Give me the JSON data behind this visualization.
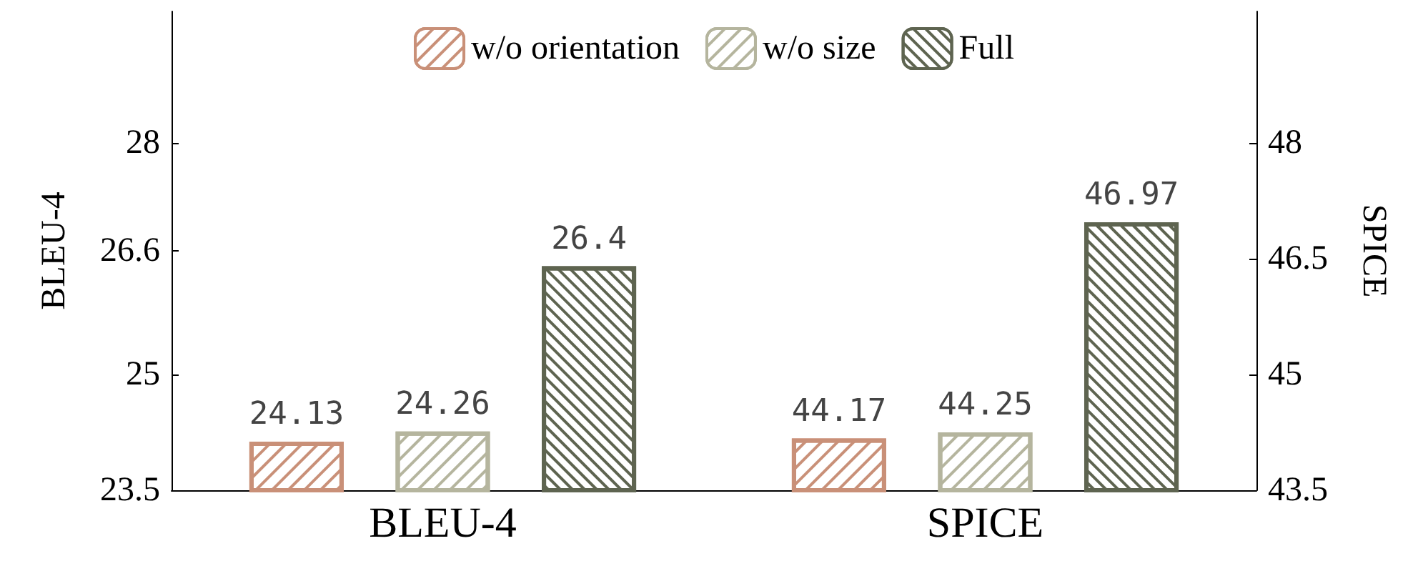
{
  "chart_data": {
    "type": "bar",
    "categories": [
      "BLEU-4",
      "SPICE"
    ],
    "ylabel": "BLEU-4",
    "y2label": "SPICE",
    "series": [
      {
        "name": "w/o orientation",
        "color": "#c99078",
        "values": [
          24.13,
          null
        ]
      },
      {
        "name": "w/o size",
        "color": "#b5b59e",
        "values": [
          24.26,
          null
        ]
      },
      {
        "name": "Full",
        "color": "#5e6450",
        "values": [
          26.4,
          null
        ]
      },
      {
        "color": "#c99078",
        "values": [
          null,
          44.17
        ],
        "axis": "y2"
      },
      {
        "color": "#b5b59e",
        "values": [
          null,
          44.25
        ],
        "axis": "y2"
      },
      {
        "color": "#5e6450",
        "values": [
          null,
          46.97
        ],
        "axis": "y2"
      }
    ],
    "ylim": [
      23.5,
      29.7
    ],
    "yticks": [
      23.5,
      25,
      26.6,
      28
    ],
    "y2lim": [
      43.5,
      49.7
    ],
    "y2ticks": [
      43.5,
      45,
      46.5,
      48
    ],
    "data_labels": true,
    "legend": "top",
    "grid": false
  }
}
